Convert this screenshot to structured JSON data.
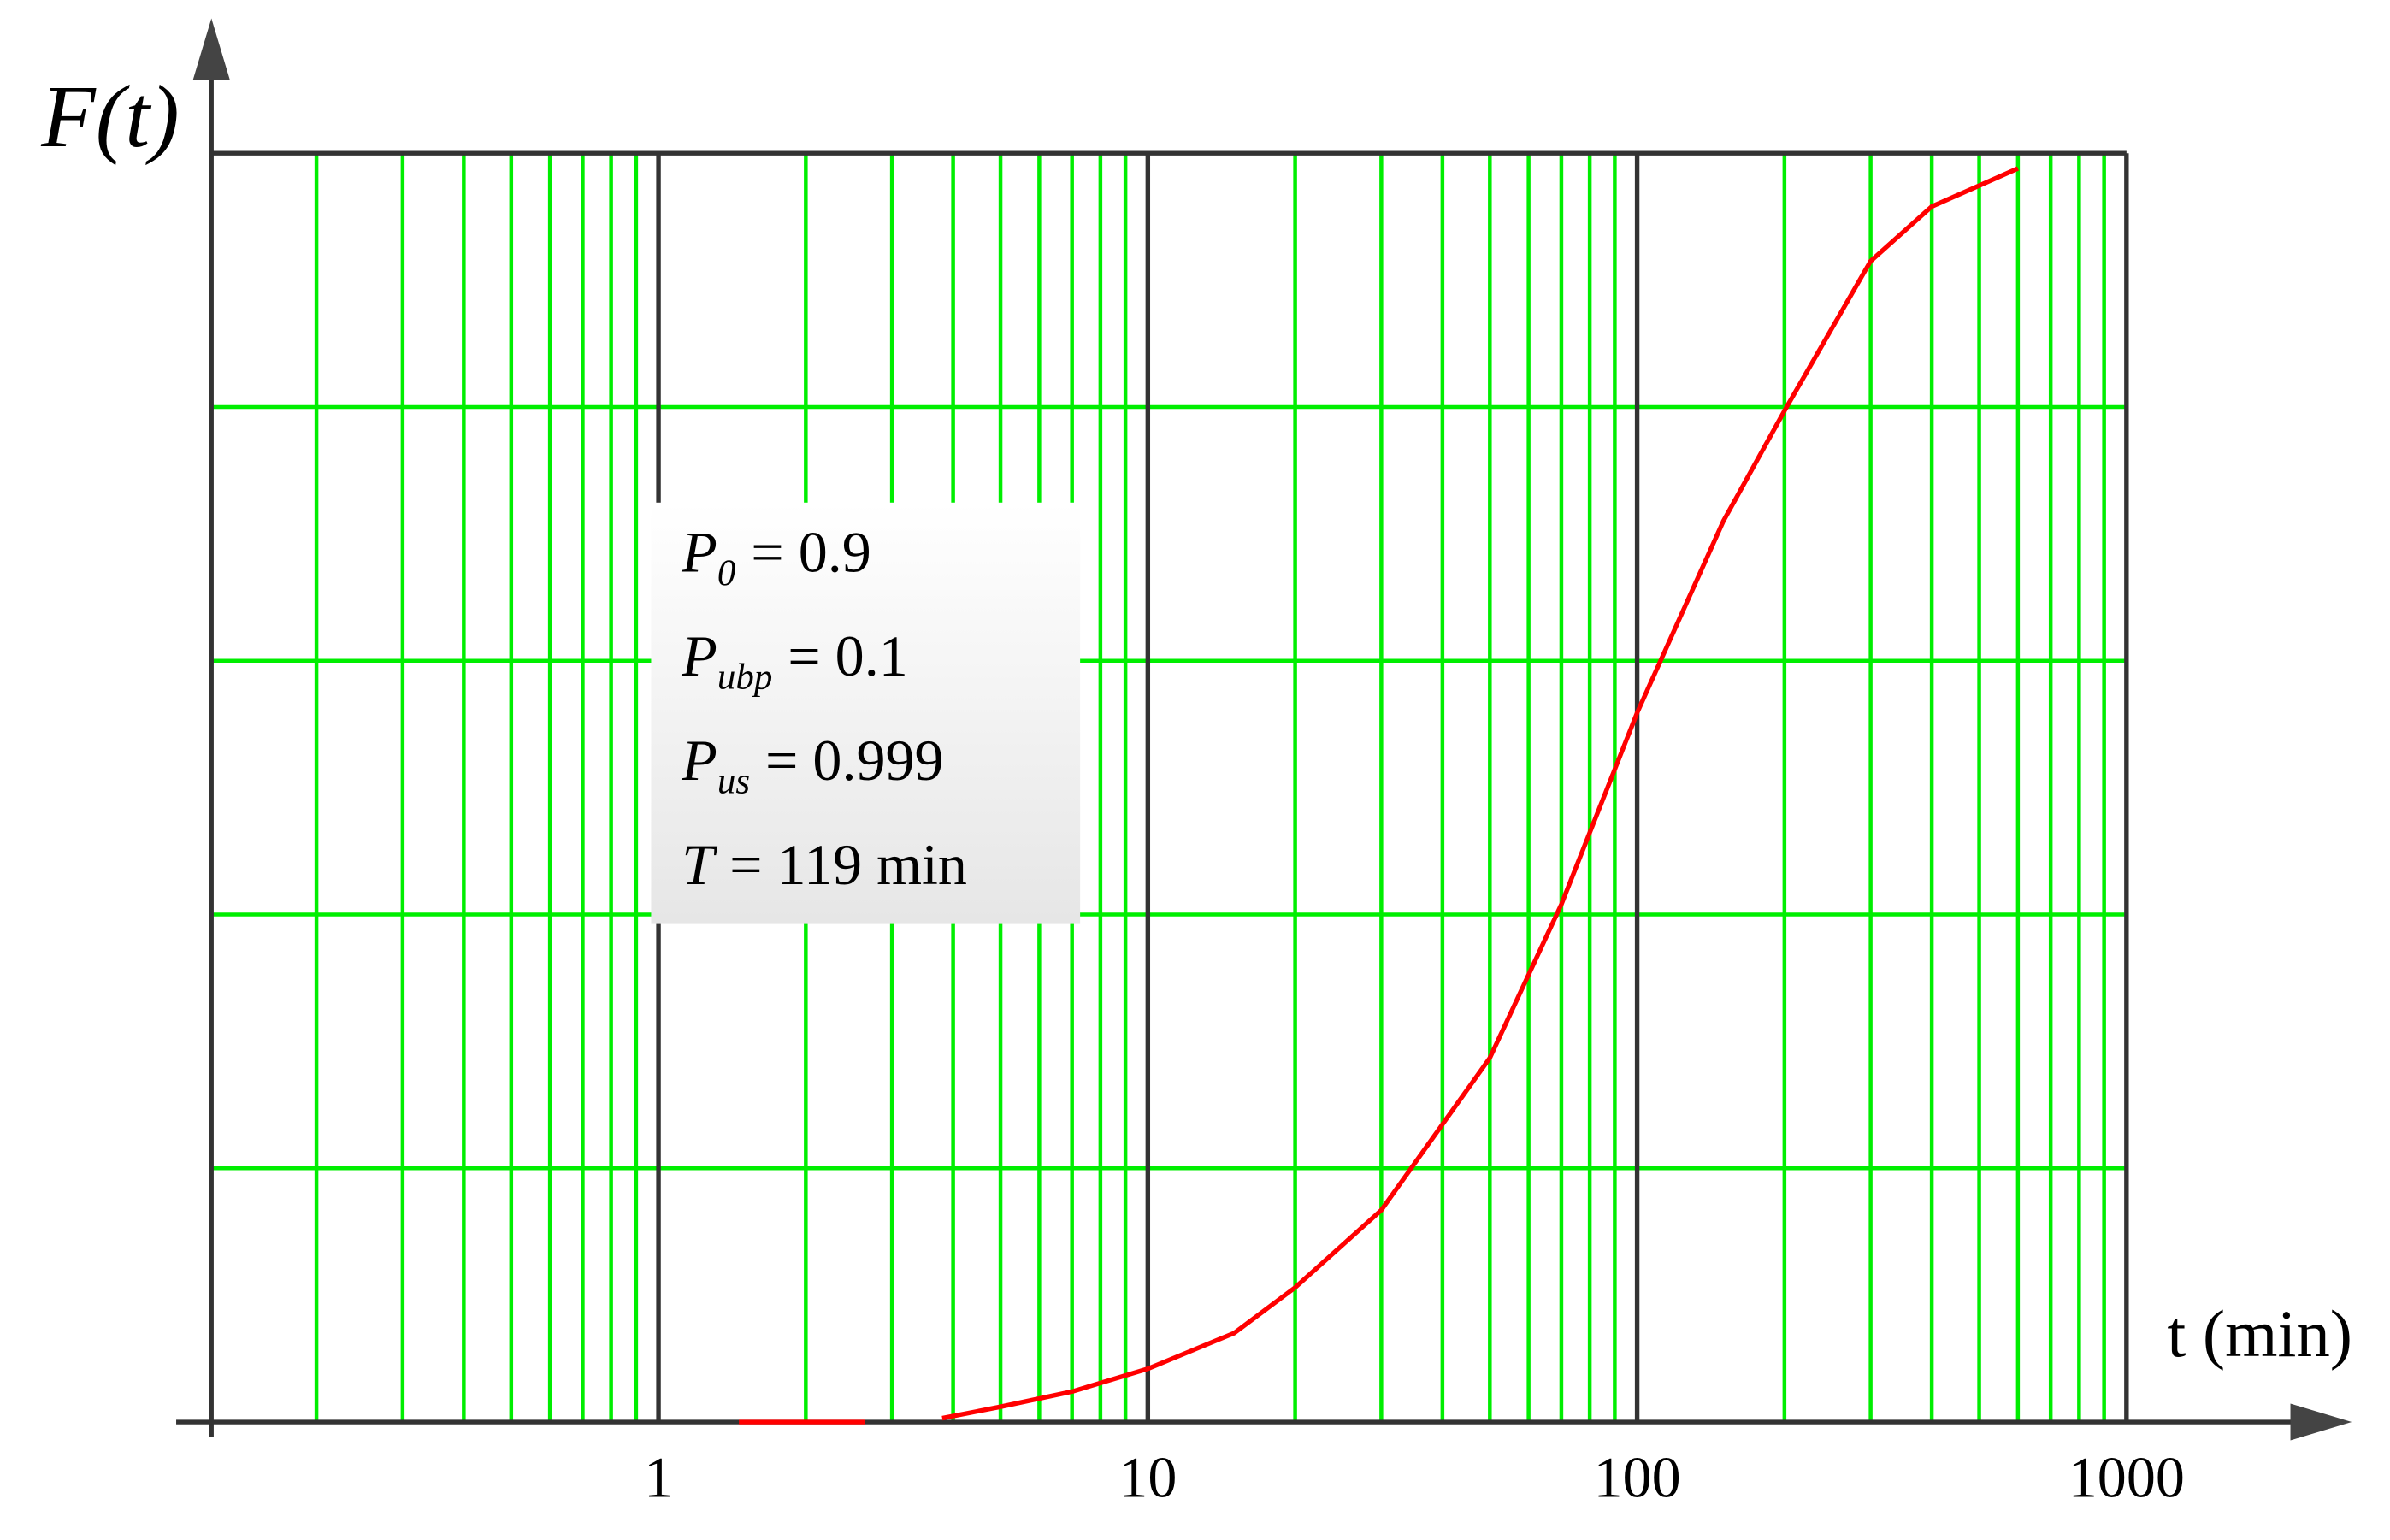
{
  "chart_data": {
    "type": "line",
    "y_label": "F(t)",
    "x_label": "t (min)",
    "x": [
      1.46,
      2.64,
      3.0,
      3.8,
      5,
      7,
      10,
      15,
      20,
      30,
      50,
      70,
      100,
      150,
      200,
      300,
      400,
      600
    ],
    "series": [
      {
        "color": "#ff0000",
        "values": [
          0,
          0,
          null,
          0.003,
          0.012,
          0.024,
          0.042,
          0.07,
          0.106,
          0.167,
          0.287,
          0.408,
          0.559,
          0.71,
          0.797,
          0.915,
          0.958,
          0.988
        ]
      }
    ],
    "xlim": [
      0.122,
      1000
    ],
    "xticks": [
      1,
      10,
      100,
      1000
    ],
    "log_x": true,
    "minor_grid": true,
    "ylim": [
      0,
      1
    ],
    "ygrid": [
      0.2,
      0.4,
      0.6,
      0.8
    ],
    "grid_color": "#00ee00",
    "annotations": [
      {
        "symbol": "P",
        "subscript": "0",
        "text": "= 0.9"
      },
      {
        "symbol": "P",
        "subscript": "ubp",
        "text": "= 0.1"
      },
      {
        "symbol": "P",
        "subscript": "us",
        "text": "= 0.999"
      },
      {
        "symbol": "T",
        "text": "= 119 min"
      }
    ]
  }
}
